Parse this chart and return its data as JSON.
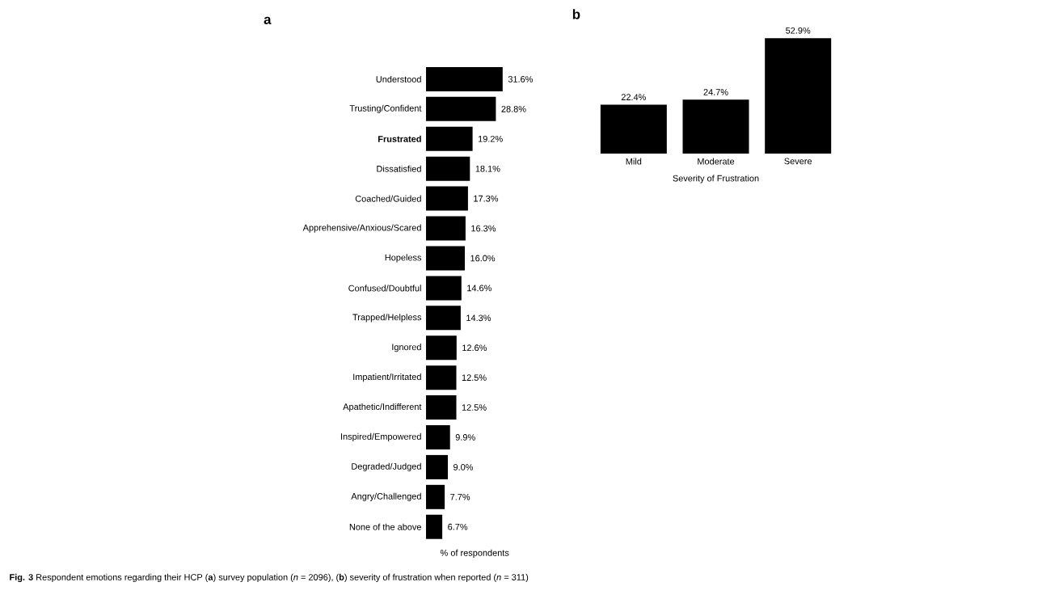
{
  "chart_data": [
    {
      "type": "bar",
      "orientation": "horizontal",
      "title": "a",
      "xlabel": "% of respondents",
      "categories": [
        "Understood",
        "Trusting/Confident",
        "**Frustrated**",
        "Dissatisfied",
        "Coached/Guided",
        "Apprehensive/Anxious/Scared",
        "Hopeless",
        "Confused/Doubtful",
        "Trapped/Helpless",
        "Ignored",
        "Impatient/Irritated",
        "Apathetic/Indifferent",
        "Inspired/Empowered",
        "Degraded/Judged",
        "Angry/Challenged",
        "None of the above"
      ],
      "values": [
        31.6,
        28.8,
        19.2,
        18.1,
        17.3,
        16.3,
        16.0,
        14.6,
        14.3,
        12.6,
        12.5,
        12.5,
        9.9,
        9.0,
        7.7,
        6.7
      ],
      "value_labels": [
        "31.6%",
        "28.8%",
        "19.2%",
        "18.1%",
        "17.3%",
        "16.3%",
        "16.0%",
        "14.6%",
        "14.3%",
        "12.6%",
        "12.5%",
        "12.5%",
        "9.9%",
        "9.0%",
        "7.7%",
        "6.7%"
      ],
      "color": "#000000",
      "annotations": [
        "**Fig. 3** Respondent emotions regarding their HCP (**a**) survey population (*n* = 2096), (**b**) severity of frustration when reported (*n* = 311)"
      ]
    },
    {
      "type": "bar",
      "title": "b",
      "xlabel": "Severity of Frustration",
      "categories": [
        "Mild",
        "Moderate",
        "Severe"
      ],
      "values": [
        22.4,
        24.7,
        52.9
      ],
      "value_labels": [
        "22.4%",
        "24.7%",
        "52.9%"
      ],
      "color": "#000000"
    }
  ]
}
